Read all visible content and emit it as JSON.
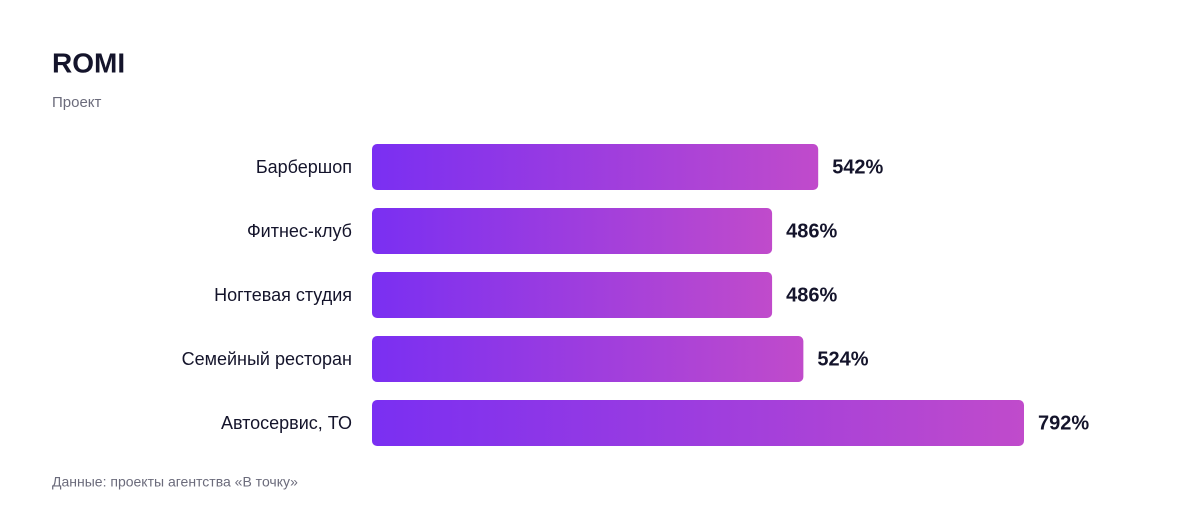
{
  "chart_data": {
    "type": "hbar",
    "title": "ROMI",
    "subtitle": "Проект",
    "categories": [
      "Барбершоп",
      "Фитнес-клуб",
      "Ногтевая студия",
      "Семейный ресторан",
      "Автосервис, ТО"
    ],
    "values": [
      542,
      486,
      486,
      524,
      792
    ],
    "value_labels": [
      "542%",
      "486%",
      "486%",
      "524%",
      "792%"
    ],
    "color": [
      "#7a2ff2",
      "#c04bcb"
    ],
    "source": "Данные: проекты агентства «В точку»"
  }
}
